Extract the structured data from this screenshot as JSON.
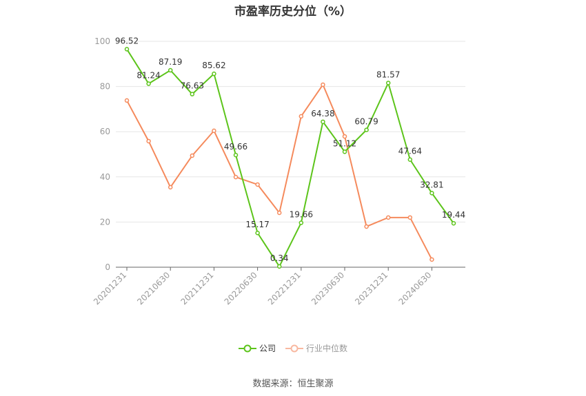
{
  "title": "市盈率历史分位（%）",
  "legend": {
    "company_label": "公司",
    "industry_label": "行业中位数"
  },
  "source": "数据来源：恒生聚源",
  "colors": {
    "company": "#5cc41a",
    "industry": "#f58a5c",
    "grid": "#e6e6e6",
    "axis": "#666666",
    "tick_text": "#999999",
    "label_text": "#333333"
  },
  "chart_data": {
    "type": "line",
    "title": "市盈率历史分位（%）",
    "xlabel": "",
    "ylabel": "",
    "ylim": [
      0,
      100
    ],
    "yticks": [
      0,
      20,
      40,
      60,
      80,
      100
    ],
    "grid": true,
    "legend_position": "bottom",
    "x_tick_labels": [
      "20201231",
      "20210630",
      "20211231",
      "20220630",
      "20221231",
      "20230630",
      "20231231",
      "20240630"
    ],
    "x": [
      "20201231",
      "20210331",
      "20210630",
      "20210930",
      "20211231",
      "20220331",
      "20220630",
      "20220930",
      "20221231",
      "20230331",
      "20230630",
      "20230930",
      "20231231",
      "20240331",
      "20240630",
      "20240930"
    ],
    "series": [
      {
        "name": "公司",
        "values": [
          96.52,
          81.24,
          87.19,
          76.63,
          85.62,
          49.66,
          15.17,
          0.34,
          19.66,
          64.38,
          51.12,
          60.79,
          81.57,
          47.64,
          32.81,
          19.44
        ],
        "labels_shown": true
      },
      {
        "name": "行业中位数",
        "values": [
          73.8,
          55.8,
          35.4,
          49.4,
          60.4,
          39.9,
          36.6,
          24.1,
          66.8,
          80.8,
          57.9,
          18.0,
          22.0,
          22.0,
          3.4,
          null
        ],
        "labels_shown": false
      }
    ]
  }
}
